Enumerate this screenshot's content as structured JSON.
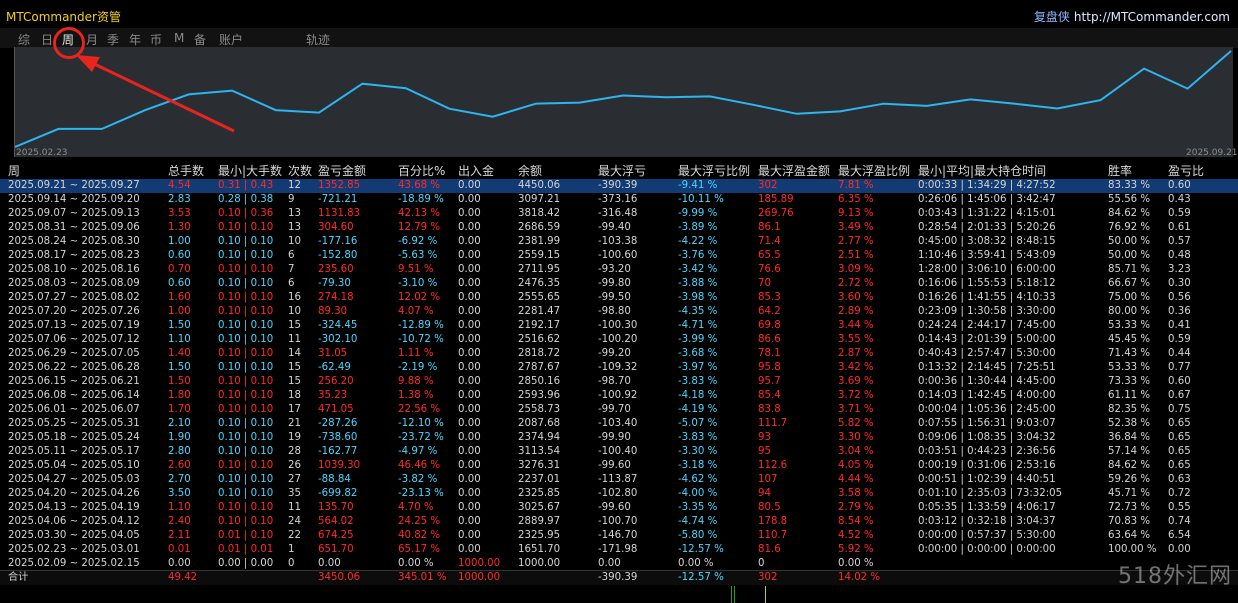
{
  "app": {
    "title": "MTCommander资管",
    "brand_cn": "复盘侠",
    "brand_url": "http://MTCommander.com"
  },
  "menu": {
    "items": [
      "综",
      "日",
      "周",
      "月",
      "季",
      "年",
      "币",
      "M",
      "备",
      "账户"
    ],
    "active_index": 2,
    "extra": "轨迹"
  },
  "equity_chart": {
    "type": "line",
    "x_start_label": "2025.02.23",
    "x_end_label": "2025.09.21",
    "line_color": "#2bb6f0",
    "values": [
      1000,
      1650,
      1651,
      2326,
      2890,
      3026,
      2326,
      2237,
      3276,
      3114,
      2375,
      2088,
      2559,
      2594,
      2850,
      2788,
      2819,
      2517,
      2192,
      2281,
      2556,
      2476,
      2712,
      2559,
      2382,
      2687,
      3818,
      3097,
      4450
    ]
  },
  "annotation": {
    "color": "#e8241f"
  },
  "table": {
    "headers": [
      "周",
      "总手数",
      "最小|大手数",
      "次数",
      "盈亏金额",
      "百分比%",
      "出入金",
      "余额",
      "最大浮亏",
      "最大浮亏比例",
      "最大浮盈金额",
      "最大浮盈比例",
      "最小|平均|最大持仓时间",
      "胜率",
      "盈亏比"
    ],
    "rows": [
      [
        "2025.09.21 ~ 2025.09.27",
        "4.54",
        "0.31 | 0.43",
        "12",
        "1352.85",
        "43.68 %",
        "0.00",
        "4450.06",
        "-390.39",
        "-9.41 %",
        "302",
        "7.81 %",
        "0:00:33 | 1:34:29 | 4:27:52",
        "83.33 %",
        "0.60"
      ],
      [
        "2025.09.14 ~ 2025.09.20",
        "2.83",
        "0.28 | 0.38",
        "9",
        "-721.21",
        "-18.89 %",
        "0.00",
        "3097.21",
        "-373.16",
        "-10.11 %",
        "185.89",
        "6.35 %",
        "0:26:06 | 1:45:06 | 3:42:47",
        "55.56 %",
        "0.43"
      ],
      [
        "2025.09.07 ~ 2025.09.13",
        "3.53",
        "0.10 | 0.36",
        "13",
        "1131.83",
        "42.13 %",
        "0.00",
        "3818.42",
        "-316.48",
        "-9.99 %",
        "269.76",
        "9.13 %",
        "0:03:43 | 1:31:22 | 4:15:01",
        "84.62 %",
        "0.59"
      ],
      [
        "2025.08.31 ~ 2025.09.06",
        "1.30",
        "0.10 | 0.10",
        "13",
        "304.60",
        "12.79 %",
        "0.00",
        "2686.59",
        "-99.40",
        "-3.89 %",
        "86.1",
        "3.49 %",
        "0:28:54 | 2:01:33 | 5:20:26",
        "76.92 %",
        "0.61"
      ],
      [
        "2025.08.24 ~ 2025.08.30",
        "1.00",
        "0.10 | 0.10",
        "10",
        "-177.16",
        "-6.92 %",
        "0.00",
        "2381.99",
        "-103.38",
        "-4.22 %",
        "71.4",
        "2.77 %",
        "0:45:00 | 3:08:32 | 8:48:15",
        "50.00 %",
        "0.57"
      ],
      [
        "2025.08.17 ~ 2025.08.23",
        "0.60",
        "0.10 | 0.10",
        "6",
        "-152.80",
        "-5.63 %",
        "0.00",
        "2559.15",
        "-100.60",
        "-3.76 %",
        "65.5",
        "2.51 %",
        "1:10:46 | 3:59:41 | 5:43:09",
        "50.00 %",
        "0.48"
      ],
      [
        "2025.08.10 ~ 2025.08.16",
        "0.70",
        "0.10 | 0.10",
        "7",
        "235.60",
        "9.51 %",
        "0.00",
        "2711.95",
        "-93.20",
        "-3.42 %",
        "76.6",
        "3.09 %",
        "1:28:00 | 3:06:10 | 6:00:00",
        "85.71 %",
        "3.23"
      ],
      [
        "2025.08.03 ~ 2025.08.09",
        "0.60",
        "0.10 | 0.10",
        "6",
        "-79.30",
        "-3.10 %",
        "0.00",
        "2476.35",
        "-99.80",
        "-3.88 %",
        "70",
        "2.72 %",
        "0:16:06 | 1:55:53 | 5:18:12",
        "66.67 %",
        "0.30"
      ],
      [
        "2025.07.27 ~ 2025.08.02",
        "1.60",
        "0.10 | 0.10",
        "16",
        "274.18",
        "12.02 %",
        "0.00",
        "2555.65",
        "-99.50",
        "-3.98 %",
        "85.3",
        "3.60 %",
        "0:16:26 | 1:41:55 | 4:10:33",
        "75.00 %",
        "0.56"
      ],
      [
        "2025.07.20 ~ 2025.07.26",
        "1.00",
        "0.10 | 0.10",
        "10",
        "89.30",
        "4.07 %",
        "0.00",
        "2281.47",
        "-98.80",
        "-4.35 %",
        "64.2",
        "2.89 %",
        "0:23:09 | 1:30:58 | 3:30:00",
        "80.00 %",
        "0.36"
      ],
      [
        "2025.07.13 ~ 2025.07.19",
        "1.50",
        "0.10 | 0.10",
        "15",
        "-324.45",
        "-12.89 %",
        "0.00",
        "2192.17",
        "-100.30",
        "-4.71 %",
        "69.8",
        "3.44 %",
        "0:24:24 | 2:44:17 | 7:45:00",
        "53.33 %",
        "0.41"
      ],
      [
        "2025.07.06 ~ 2025.07.12",
        "1.10",
        "0.10 | 0.10",
        "11",
        "-302.10",
        "-10.72 %",
        "0.00",
        "2516.62",
        "-100.20",
        "-3.99 %",
        "86.6",
        "3.55 %",
        "0:14:43 | 2:01:39 | 5:00:00",
        "45.45 %",
        "0.59"
      ],
      [
        "2025.06.29 ~ 2025.07.05",
        "1.40",
        "0.10 | 0.10",
        "14",
        "31.05",
        "1.11 %",
        "0.00",
        "2818.72",
        "-99.20",
        "-3.68 %",
        "78.1",
        "2.87 %",
        "0:40:43 | 2:57:47 | 5:30:00",
        "71.43 %",
        "0.44"
      ],
      [
        "2025.06.22 ~ 2025.06.28",
        "1.50",
        "0.10 | 0.10",
        "15",
        "-62.49",
        "-2.19 %",
        "0.00",
        "2787.67",
        "-109.32",
        "-3.97 %",
        "95.8",
        "3.42 %",
        "0:13:32 | 2:14:45 | 7:25:51",
        "53.33 %",
        "0.77"
      ],
      [
        "2025.06.15 ~ 2025.06.21",
        "1.50",
        "0.10 | 0.10",
        "15",
        "256.20",
        "9.88 %",
        "0.00",
        "2850.16",
        "-98.70",
        "-3.83 %",
        "95.7",
        "3.69 %",
        "0:00:36 | 1:30:44 | 4:45:00",
        "73.33 %",
        "0.60"
      ],
      [
        "2025.06.08 ~ 2025.06.14",
        "1.80",
        "0.10 | 0.10",
        "18",
        "35.23",
        "1.38 %",
        "0.00",
        "2593.96",
        "-100.92",
        "-4.18 %",
        "85.4",
        "3.72 %",
        "0:14:03 | 1:42:45 | 4:00:00",
        "61.11 %",
        "0.67"
      ],
      [
        "2025.06.01 ~ 2025.06.07",
        "1.70",
        "0.10 | 0.10",
        "17",
        "471.05",
        "22.56 %",
        "0.00",
        "2558.73",
        "-99.70",
        "-4.19 %",
        "83.8",
        "3.71 %",
        "0:00:04 | 1:05:36 | 2:45:00",
        "82.35 %",
        "0.75"
      ],
      [
        "2025.05.25 ~ 2025.05.31",
        "2.10",
        "0.10 | 0.10",
        "21",
        "-287.26",
        "-12.10 %",
        "0.00",
        "2087.68",
        "-103.40",
        "-5.07 %",
        "111.7",
        "5.82 %",
        "0:07:55 | 1:56:31 | 9:03:07",
        "52.38 %",
        "0.65"
      ],
      [
        "2025.05.18 ~ 2025.05.24",
        "1.90",
        "0.10 | 0.10",
        "19",
        "-738.60",
        "-23.72 %",
        "0.00",
        "2374.94",
        "-99.90",
        "-3.83 %",
        "93",
        "3.30 %",
        "0:09:06 | 1:08:35 | 3:04:32",
        "36.84 %",
        "0.65"
      ],
      [
        "2025.05.11 ~ 2025.05.17",
        "2.80",
        "0.10 | 0.10",
        "28",
        "-162.77",
        "-4.97 %",
        "0.00",
        "3113.54",
        "-100.40",
        "-3.30 %",
        "95",
        "3.04 %",
        "0:03:51 | 0:44:23 | 2:36:56",
        "57.14 %",
        "0.65"
      ],
      [
        "2025.05.04 ~ 2025.05.10",
        "2.60",
        "0.10 | 0.10",
        "26",
        "1039.30",
        "46.46 %",
        "0.00",
        "3276.31",
        "-99.60",
        "-3.18 %",
        "112.6",
        "4.05 %",
        "0:00:19 | 0:31:06 | 2:53:16",
        "84.62 %",
        "0.65"
      ],
      [
        "2025.04.27 ~ 2025.05.03",
        "2.70",
        "0.10 | 0.10",
        "27",
        "-88.84",
        "-3.82 %",
        "0.00",
        "2237.01",
        "-113.87",
        "-4.62 %",
        "107",
        "4.44 %",
        "0:00:51 | 1:02:39 | 4:40:51",
        "59.26 %",
        "0.63"
      ],
      [
        "2025.04.20 ~ 2025.04.26",
        "3.50",
        "0.10 | 0.10",
        "35",
        "-699.82",
        "-23.13 %",
        "0.00",
        "2325.85",
        "-102.80",
        "-4.00 %",
        "94",
        "3.58 %",
        "0:01:10 | 2:35:03 | 73:32:05",
        "45.71 %",
        "0.72"
      ],
      [
        "2025.04.13 ~ 2025.04.19",
        "1.10",
        "0.10 | 0.10",
        "11",
        "135.70",
        "4.70 %",
        "0.00",
        "3025.67",
        "-99.60",
        "-3.35 %",
        "80.5",
        "2.79 %",
        "0:05:35 | 1:33:59 | 4:06:17",
        "72.73 %",
        "0.55"
      ],
      [
        "2025.04.06 ~ 2025.04.12",
        "2.40",
        "0.10 | 0.10",
        "24",
        "564.02",
        "24.25 %",
        "0.00",
        "2889.97",
        "-100.70",
        "-4.74 %",
        "178.8",
        "8.54 %",
        "0:03:12 | 0:32:18 | 3:04:37",
        "70.83 %",
        "0.74"
      ],
      [
        "2025.03.30 ~ 2025.04.05",
        "2.11",
        "0.01 | 0.10",
        "22",
        "674.25",
        "40.82 %",
        "0.00",
        "2325.95",
        "-146.70",
        "-5.80 %",
        "110.7",
        "4.52 %",
        "0:00:00 | 0:57:37 | 5:30:00",
        "63.64 %",
        "6.54"
      ],
      [
        "2025.02.23 ~ 2025.03.01",
        "0.01",
        "0.01 | 0.01",
        "1",
        "651.70",
        "65.17 %",
        "0.00",
        "1651.70",
        "-171.98",
        "-12.57 %",
        "81.6",
        "5.92 %",
        "0:00:00 | 0:00:00 | 0:00:00",
        "100.00 %",
        "0.00"
      ],
      [
        "2025.02.09 ~ 2025.02.15",
        "0.00",
        "0.00 | 0.00",
        "0",
        "0.00",
        "0.00 %",
        "1000.00",
        "1000.00",
        "0.00",
        "0.00 %",
        "0",
        "0.00 %",
        "",
        "",
        ""
      ]
    ],
    "total": [
      "合计",
      "49.42",
      "",
      "",
      "3450.06",
      "345.01 %",
      "1000.00",
      "",
      "-390.39",
      "-12.57 %",
      "302",
      "14.02 %",
      "",
      "",
      ""
    ]
  },
  "watermark": "518外汇网",
  "colors": {
    "positive": "#ff2a2a",
    "negative": "#48d8ff",
    "neutral": "#d4d4d4",
    "selected_row": "#123a73"
  }
}
